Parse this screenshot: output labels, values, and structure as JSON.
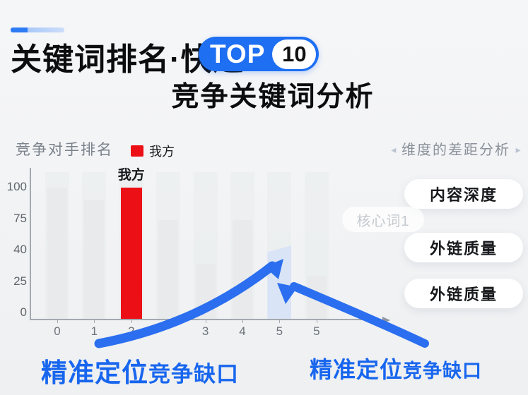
{
  "header": {
    "title": "关键词排名·快速",
    "badge_text": "TOP",
    "badge_number": "10",
    "subtitle": "竞争关键词分析",
    "accent_color": "#2d7bf4"
  },
  "chart_data": {
    "type": "bar",
    "title": "竞争对手排名",
    "legend": [
      {
        "label": "我方",
        "color": "#ec1016"
      }
    ],
    "legend_position": "top",
    "grid": false,
    "ylim": [
      0,
      100
    ],
    "y_ticks": [
      "100",
      "75",
      "40",
      "25",
      "0"
    ],
    "x_tick_labels": [
      "0",
      "1",
      "2",
      "",
      "3",
      "4",
      "5",
      "5"
    ],
    "bars": [
      {
        "x": "0",
        "value": 100,
        "kind": "competitor"
      },
      {
        "x": "1",
        "value": 91,
        "kind": "competitor"
      },
      {
        "x": "2",
        "value": 100,
        "kind": "ours",
        "annotation": "我方"
      },
      {
        "x": "",
        "value": 75,
        "kind": "competitor"
      },
      {
        "x": "3",
        "value": 42,
        "kind": "competitor"
      },
      {
        "x": "4",
        "value": 75,
        "kind": "competitor"
      },
      {
        "x": "5",
        "value": 56,
        "kind": "gap-highlight"
      },
      {
        "x": "5",
        "value": 33,
        "kind": "competitor"
      }
    ],
    "colors": {
      "competitor": "#e9eaeb",
      "ours": "#ec1016",
      "gap-highlight": "#d9e4f6"
    }
  },
  "right_panel": {
    "left_arrow": "◂",
    "heading": "维度的差距分析",
    "right_arrow": "▸",
    "ghost_label": "核心词1",
    "pills": [
      "内容深度",
      "外链质量",
      "外链质量"
    ]
  },
  "captions": {
    "left": {
      "strong": "精准定位",
      "rest": "竞争缺口"
    },
    "right": {
      "strong": "精准定位",
      "rest": "竞争缺口"
    }
  },
  "arrow_color": "#2b6ff0"
}
